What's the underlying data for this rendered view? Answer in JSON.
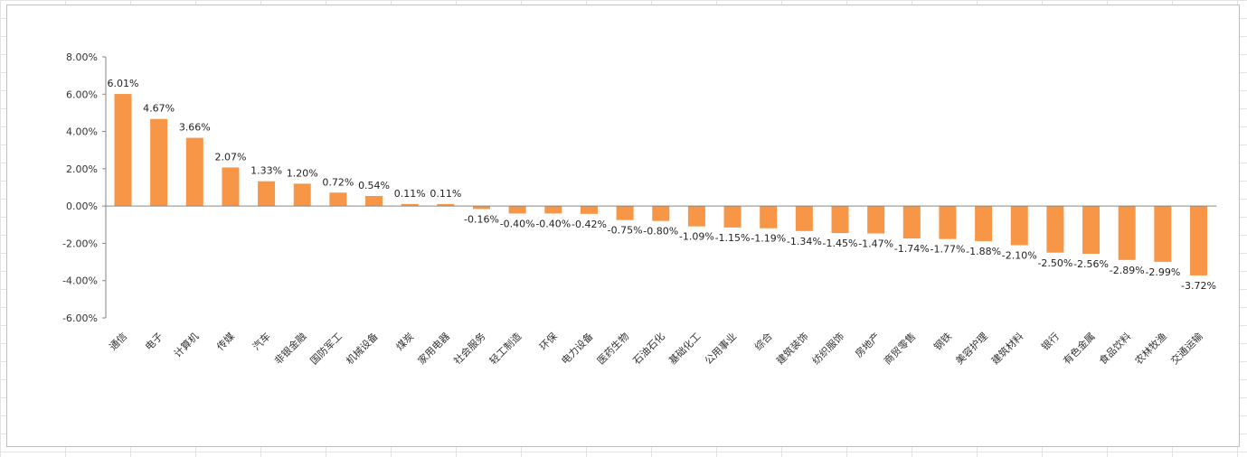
{
  "chart_data": {
    "type": "bar",
    "title": "",
    "xlabel": "",
    "ylabel": "",
    "ylim": [
      -6,
      8
    ],
    "yticks": [
      8,
      6,
      4,
      2,
      0,
      -2,
      -4,
      -6
    ],
    "ytick_labels": [
      "8.00%",
      "6.00%",
      "4.00%",
      "2.00%",
      "0.00%",
      "-2.00%",
      "-4.00%",
      "-6.00%"
    ],
    "grid": false,
    "legend": "none",
    "bar_color": "#F79646",
    "categories": [
      "通信",
      "电子",
      "计算机",
      "传媒",
      "汽车",
      "非银金融",
      "国防军工",
      "机械设备",
      "煤炭",
      "家用电器",
      "社会服务",
      "轻工制造",
      "环保",
      "电力设备",
      "医药生物",
      "石油石化",
      "基础化工",
      "公用事业",
      "综合",
      "建筑装饰",
      "纺织服饰",
      "房地产",
      "商贸零售",
      "钢铁",
      "美容护理",
      "建筑材料",
      "银行",
      "有色金属",
      "食品饮料",
      "农林牧渔",
      "交通运输"
    ],
    "values": [
      6.01,
      4.67,
      3.66,
      2.07,
      1.33,
      1.2,
      0.72,
      0.54,
      0.11,
      0.11,
      -0.16,
      -0.4,
      -0.4,
      -0.42,
      -0.75,
      -0.8,
      -1.09,
      -1.15,
      -1.19,
      -1.34,
      -1.45,
      -1.47,
      -1.74,
      -1.77,
      -1.88,
      -2.1,
      -2.5,
      -2.56,
      -2.89,
      -2.99,
      -3.72
    ],
    "value_labels": [
      "6.01%",
      "4.67%",
      "3.66%",
      "2.07%",
      "1.33%",
      "1.20%",
      "0.72%",
      "0.54%",
      "0.11%",
      "0.11%",
      "-0.16%",
      "-0.40%",
      "-0.40%",
      "-0.42%",
      "-0.75%",
      "-0.80%",
      "-1.09%",
      "-1.15%",
      "-1.19%",
      "-1.34%",
      "-1.45%",
      "-1.47%",
      "-1.74%",
      "-1.77%",
      "-1.88%",
      "-2.10%",
      "-2.50%",
      "-2.56%",
      "-2.89%",
      "-2.99%",
      "-3.72%"
    ]
  }
}
